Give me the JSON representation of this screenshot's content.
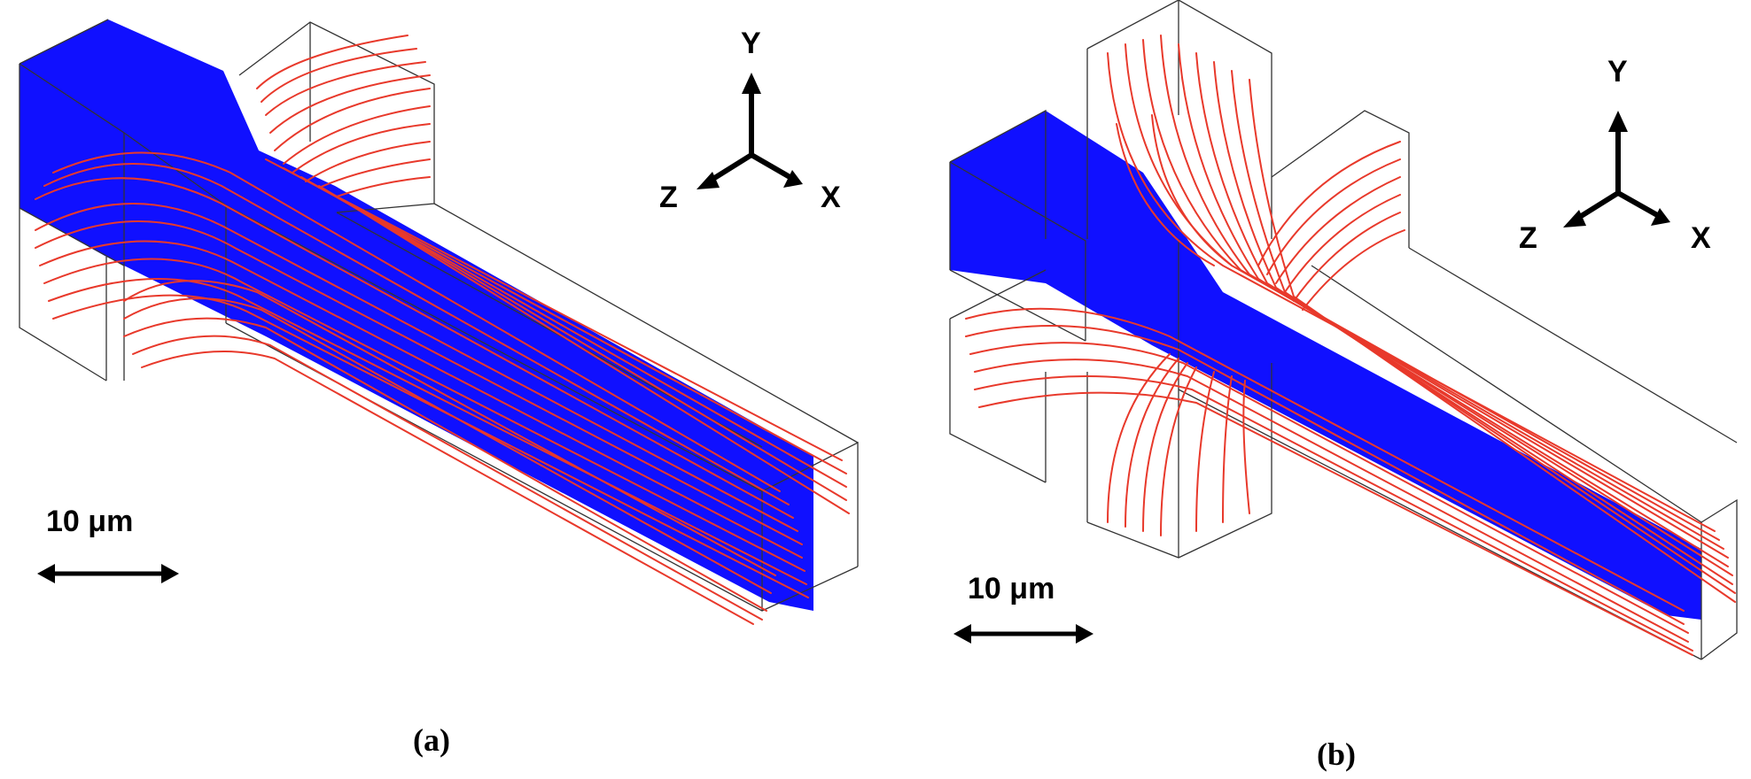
{
  "colors": {
    "focused_stream": "#1010ff",
    "sheath_streamlines": "#e8392b",
    "channel_outline": "#333333",
    "axes": "#000000"
  },
  "panel_a": {
    "caption": "(a)",
    "axes": {
      "y": "Y",
      "z": "Z",
      "x": "X"
    },
    "scale_bar": {
      "label": "10 μm"
    },
    "description_icon": "t-junction-channel"
  },
  "panel_b": {
    "caption": "(b)",
    "axes": {
      "y": "Y",
      "z": "Z",
      "x": "X"
    },
    "scale_bar": {
      "label": "10 μm"
    },
    "description_icon": "cross-junction-channel"
  }
}
